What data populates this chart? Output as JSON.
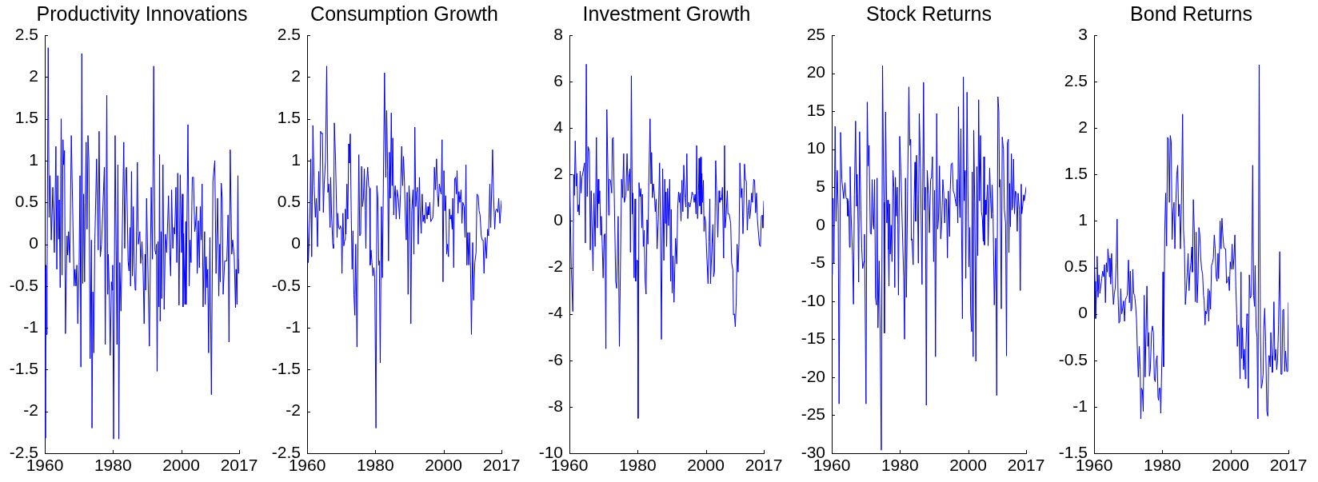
{
  "chart_data": [
    {
      "type": "line",
      "title": "Productivity Innovations",
      "color": "#0000ff",
      "xlim": [
        1960,
        2017
      ],
      "xticks": [
        1960,
        1980,
        2000,
        2017
      ],
      "ylim": [
        -2.5,
        2.5
      ],
      "yticks": [
        -2.5,
        -2,
        -1.5,
        -1,
        -0.5,
        0,
        0.5,
        1,
        1.5,
        2,
        2.5
      ],
      "x": [
        1960.0,
        1960.18,
        1960.36,
        1960.5,
        1960.68,
        1961.0,
        1961.27,
        1961.54,
        1961.9,
        1962.35,
        1962.81,
        1963.26,
        1963.53,
        1963.8,
        1964.07,
        1964.25,
        1964.52,
        1964.8,
        1965.07,
        1965.34,
        1965.52,
        1965.79,
        1966.06,
        1966.52,
        1966.7,
        1966.97,
        1967.33,
        1967.78,
        1968.6,
        1968.87,
        1969.14,
        1969.41,
        1969.68,
        1970.05,
        1970.32,
        1970.59,
        1970.86,
        1971.13,
        1971.4,
        1971.67,
        1971.86,
        1972.13,
        1972.4,
        1972.67,
        1972.94,
        1973.3,
        1973.67,
        1973.85,
        1974.12,
        1974.39,
        1974.66,
        1975.2,
        1975.66,
        1975.93,
        1976.29,
        1976.65,
        1977.47,
        1977.74,
        1978.19,
        1978.46,
        1978.64,
        1978.91,
        1979.19,
        1979.55,
        1979.82,
        1979.91,
        1980.18,
        1980.63,
        1981.18,
        1981.45,
        1981.72,
        1981.99,
        1982.35,
        1983.17,
        1983.44,
        1983.8,
        1983.98,
        1984.43,
        1984.71,
        1984.98,
        1985.16,
        1985.43,
        1985.7,
        1985.97,
        1986.24,
        1986.52,
        1986.7,
        1987.15,
        1987.42,
        1987.87,
        1988.14,
        1988.51,
        1988.78,
        1989.14,
        1989.41,
        1989.59,
        1989.86,
        1990.68,
        1991.22,
        1991.58,
        1991.95,
        1992.31,
        1992.58,
        1992.76,
        1992.94,
        1993.21,
        1993.48,
        1993.67,
        1993.85,
        1994.12,
        1994.3,
        1994.66,
        1995.02,
        1995.38,
        1995.75,
        1996.29,
        1996.65,
        1996.92,
        1997.19,
        1997.56,
        1997.83,
        1998.1,
        1998.46,
        1998.73,
        1999.0,
        1999.37,
        1999.73,
        2000.09,
        2000.36,
        2000.54,
        2000.72,
        2001.09,
        2001.36,
        2001.45,
        2001.99,
        2002.35,
        2002.62,
        2002.9,
        2003.26,
        2003.62,
        2003.98,
        2004.16,
        2004.52,
        2004.71,
        2005.07,
        2005.34,
        2005.61,
        2005.88,
        2006.15,
        2006.43,
        2006.88,
        2007.06,
        2007.33,
        2007.6,
        2007.78,
        2008.05,
        2008.42,
        2008.87,
        2009.32,
        2009.86,
        2010.23,
        2010.68,
        2011.04,
        2011.31,
        2011.49,
        2011.76,
        2012.04,
        2012.31,
        2012.76,
        2013.39,
        2013.76,
        2014.03,
        2014.39,
        2014.84,
        2015.11,
        2015.57,
        2015.93,
        2016.11,
        2016.38,
        2016.65,
        2016.83,
        2017.0
      ],
      "values": [
        -0.3,
        -2.32,
        -0.25,
        -1.08,
        -0.25,
        2.35,
        0.32,
        0.82,
        0.05,
        0.68,
        -0.1,
        1.17,
        -0.3,
        0.82,
        0.06,
        0.53,
        -0.52,
        1.5,
        -0.37,
        1.25,
        0.95,
        1.12,
        -1.07,
        0.1,
        -0.13,
        0.15,
        -0.22,
        1.3,
        -0.5,
        -0.3,
        -0.5,
        -0.25,
        -0.95,
        -0.3,
        0.82,
        -1.47,
        2.28,
        -0.47,
        0.6,
        -0.45,
        0.5,
        1.22,
        0.18,
        1.3,
        1.0,
        -1.37,
        0.05,
        -2.2,
        -0.57,
        -1.3,
        0.0,
        1.02,
        -0.07,
        1.35,
        -0.15,
        0.0,
        0.92,
        -1.2,
        1.78,
        -0.6,
        -0.12,
        -0.55,
        -1.33,
        -0.45,
        -0.55,
        -0.25,
        -2.33,
        1.3,
        -1.2,
        0.95,
        -2.33,
        -0.22,
        -0.8,
        1.22,
        -0.05,
        0.9,
        0.92,
        -0.2,
        -0.32,
        0.2,
        -0.5,
        0.87,
        -0.38,
        0.45,
        -0.28,
        -0.55,
        -0.5,
        0.98,
        0.0,
        0.15,
        -0.23,
        0.03,
        -0.2,
        -0.95,
        -0.12,
        -0.55,
        0.55,
        -1.22,
        0.68,
        -0.18,
        2.13,
        -0.07,
        -0.12,
        0.0,
        -1.52,
        0.03,
        -0.75,
        1.07,
        -0.92,
        0.15,
        -0.65,
        0.95,
        -0.78,
        0.12,
        -0.1,
        0.58,
        -0.1,
        -0.38,
        0.65,
        -0.05,
        0.2,
        0.12,
        0.68,
        -0.22,
        0.85,
        -0.73,
        0.83,
        -0.1,
        0.6,
        -0.75,
        0.13,
        -0.72,
        0.27,
        -0.72,
        1.43,
        -0.5,
        0.05,
        -0.22,
        0.8,
        0.8,
        0.15,
        0.2,
        0.45,
        -0.35,
        0.28,
        -0.28,
        0.45,
        0.05,
        0.72,
        -0.75,
        0.15,
        -0.72,
        -0.15,
        -0.52,
        -0.3,
        -1.3,
        0.08,
        -1.8,
        0.75,
        1.0,
        -0.35,
        0.55,
        -0.62,
        0.0,
        -0.45,
        0.73,
        0.55,
        -0.6,
        -0.2,
        -0.2,
        0.35,
        -1.17,
        1.13,
        -0.12,
        0.05,
        -0.15,
        -0.76,
        -0.3,
        -0.72,
        0.82,
        -0.35,
        -0.18
      ]
    },
    {
      "type": "line",
      "title": "Consumption Growth",
      "color": "#0000ff",
      "xlim": [
        1960,
        2017
      ],
      "xticks": [
        1960,
        1980,
        2000,
        2017
      ],
      "ylim": [
        -2.5,
        2.5
      ],
      "yticks": [
        -2.5,
        -2,
        -1.5,
        -1,
        -0.5,
        0,
        0.5,
        1,
        1.5,
        2,
        2.5
      ],
      "x": [
        1960.0,
        1960.36,
        1960.81,
        1961.08,
        1961.35,
        1961.71,
        1962.06,
        1962.42,
        1962.69,
        1963.05,
        1963.41,
        1963.68,
        1963.95,
        1964.22,
        1964.49,
        1964.76,
        1965.03,
        1965.39,
        1965.75,
        1966.1,
        1966.37,
        1966.73,
        1966.91,
        1967.18,
        1967.54,
        1967.72,
        1967.99,
        1968.35,
        1968.8,
        1968.98,
        1969.25,
        1969.52,
        1969.78,
        1970.05,
        1970.23,
        1970.5,
        1970.77,
        1971.04,
        1971.22,
        1971.4,
        1971.67,
        1971.94,
        1972.21,
        1972.39,
        1972.66,
        1972.93,
        1973.2,
        1973.46,
        1973.73,
        1974.0,
        1974.27,
        1974.63,
        1975.17,
        1975.44,
        1975.71,
        1975.98,
        1976.25,
        1976.52,
        1976.79,
        1977.06,
        1977.24,
        1977.5,
        1977.77,
        1978.04,
        1978.31,
        1978.49,
        1978.76,
        1979.03,
        1979.3,
        1979.57,
        1979.84,
        1980.2,
        1980.47,
        1980.74,
        1981.01,
        1981.18,
        1981.45,
        1981.81,
        1982.08,
        1982.71,
        1983.07,
        1983.34,
        1983.61,
        1983.88,
        1984.15,
        1984.42,
        1984.69,
        1984.95,
        1985.13,
        1985.4,
        1985.58,
        1985.85,
        1986.12,
        1986.39,
        1986.75,
        1987.11,
        1987.38,
        1987.74,
        1988.01,
        1988.28,
        1988.55,
        1988.82,
        1989.08,
        1989.35,
        1989.62,
        1989.89,
        1990.16,
        1990.43,
        1990.7,
        1991.06,
        1991.33,
        1991.6,
        1991.87,
        1992.14,
        1992.32,
        1992.59,
        1992.94,
        1993.21,
        1993.48,
        1993.75,
        1994.02,
        1994.29,
        1994.56,
        1994.83,
        1995.19,
        1995.46,
        1995.64,
        1996.0,
        1996.27,
        1996.62,
        1996.89,
        1997.16,
        1997.34,
        1997.61,
        1997.97,
        1998.24,
        1998.51,
        1998.78,
        1999.05,
        1999.32,
        1999.59,
        1999.86,
        2000.13,
        2000.39,
        2000.66,
        2000.93,
        2001.2,
        2001.47,
        2001.74,
        2002.01,
        2002.28,
        2002.55,
        2002.73,
        2003.0,
        2003.27,
        2003.54,
        2003.81,
        2003.99,
        2004.25,
        2004.52,
        2004.79,
        2005.15,
        2005.42,
        2005.69,
        2006.05,
        2006.32,
        2006.59,
        2006.86,
        2007.13,
        2007.4,
        2007.67,
        2007.94,
        2008.2,
        2008.56,
        2008.83,
        2009.19,
        2009.55,
        2009.82,
        2010.18,
        2010.45,
        2010.72,
        2011.08,
        2011.35,
        2011.62,
        2011.89,
        2012.24,
        2012.6,
        2012.96,
        2013.23,
        2013.59,
        2013.86,
        2014.4,
        2014.67,
        2015.03,
        2015.3,
        2015.57,
        2015.93,
        2016.2,
        2016.55,
        2017.0
      ],
      "values": [
        0.85,
        -0.22,
        0.3,
        1.02,
        -0.15,
        1.42,
        0.7,
        0.32,
        0.55,
        -0.03,
        0.87,
        0.4,
        1.35,
        1.32,
        1.33,
        0.38,
        0.72,
        1.0,
        2.13,
        0.62,
        0.72,
        0.2,
        0.8,
        0.35,
        0.0,
        -0.05,
        1.45,
        1.0,
        0.08,
        0.37,
        0.2,
        0.18,
        0.22,
        0.18,
        -0.35,
        0.37,
        -0.02,
        0.05,
        0.42,
        0.12,
        0.72,
        0.3,
        1.2,
        0.97,
        1.32,
        0.4,
        -0.3,
        0.16,
        -0.6,
        -0.85,
        0.0,
        -1.23,
        1.07,
        0.1,
        0.12,
        0.93,
        0.45,
        0.55,
        0.9,
        0.4,
        -0.05,
        0.75,
        0.92,
        0.7,
        0.67,
        -0.25,
        -0.07,
        -0.22,
        -0.38,
        -0.28,
        -0.4,
        -2.2,
        0.7,
        0.55,
        -0.25,
        -0.2,
        -1.42,
        0.45,
        -0.4,
        2.05,
        0.8,
        1.6,
        0.88,
        -0.2,
        1.1,
        0.55,
        1.57,
        0.7,
        1.27,
        0.35,
        0.55,
        0.7,
        0.3,
        0.65,
        0.55,
        0.3,
        0.6,
        1.17,
        0.7,
        1.05,
        0.75,
        0.3,
        0.05,
        0.62,
        -0.6,
        0.7,
        0.5,
        -0.95,
        0.4,
        0.65,
        -0.12,
        1.4,
        0.45,
        0.63,
        0.68,
        0.0,
        0.8,
        0.32,
        0.13,
        0.6,
        0.27,
        0.35,
        0.25,
        0.5,
        0.3,
        0.45,
        0.35,
        0.5,
        0.27,
        0.3,
        0.32,
        0.55,
        0.92,
        0.65,
        1.02,
        0.6,
        0.45,
        0.72,
        0.65,
        0.6,
        1.25,
        -0.45,
        0.88,
        0.4,
        0.58,
        -0.12,
        0.0,
        -0.15,
        0.42,
        0.3,
        0.35,
        0.18,
        0.55,
        -0.28,
        0.78,
        0.8,
        0.6,
        0.88,
        0.37,
        0.63,
        0.5,
        0.65,
        0.25,
        0.5,
        0.45,
        0.08,
        0.95,
        -0.25,
        0.14,
        -0.25,
        0.14,
        -0.3,
        -1.08,
        0.02,
        -0.67,
        -0.22,
        -0.1,
        0.6,
        0.58,
        0.4,
        0.35,
        0.1,
        0.05,
        0.05,
        -0.35,
        0.08,
        -0.17,
        0.18,
        0.1,
        0.72,
        0.2,
        1.13,
        0.6,
        0.18,
        0.4,
        0.42,
        0.38,
        0.55,
        0.25,
        0.52
      ]
    },
    {
      "type": "line",
      "title": "Investment Growth",
      "color": "#0000ff",
      "xlim": [
        1960,
        2017
      ],
      "xticks": [
        1960,
        1980,
        2000,
        2017
      ],
      "ylim": [
        -10,
        8
      ],
      "yticks": [
        -10,
        -8,
        -6,
        -4,
        -2,
        0,
        2,
        4,
        6,
        8
      ],
      "x": [
        1960.0,
        1960.54,
        1960.99,
        1961.26,
        1961.44,
        1961.71,
        1961.98,
        1962.25,
        1962.43,
        1962.61,
        1962.88,
        1963.15,
        1963.42,
        1963.69,
        1964.05,
        1964.41,
        1964.68,
        1964.95,
        1965.22,
        1965.49,
        1965.85,
        1966.12,
        1966.39,
        1966.92,
        1967.19,
        1967.55,
        1967.91,
        1968.18,
        1968.45,
        1968.63,
        1968.9,
        1969.17,
        1969.35,
        1969.62,
        1969.89,
        1970.16,
        1970.43,
        1970.7,
        1970.97,
        1971.51,
        1971.69,
        1972.05,
        1972.41,
        1972.59,
        1972.86,
        1973.22,
        1973.58,
        1973.85,
        1974.3,
        1974.66,
        1975.29,
        1975.56,
        1975.92,
        1976.1,
        1976.55,
        1976.91,
        1977.18,
        1977.45,
        1977.72,
        1977.9,
        1978.17,
        1978.44,
        1978.62,
        1978.97,
        1979.24,
        1979.42,
        1979.69,
        1979.96,
        1980.14,
        1980.41,
        1980.68,
        1980.95,
        1981.22,
        1981.4,
        1981.67,
        1981.94,
        1982.21,
        1982.48,
        1982.75,
        1983.02,
        1983.29,
        1983.65,
        1983.92,
        1984.1,
        1984.37,
        1984.64,
        1984.91,
        1985.18,
        1985.45,
        1985.72,
        1986.08,
        1986.44,
        1986.71,
        1986.98,
        1987.34,
        1987.7,
        1987.97,
        1988.15,
        1988.33,
        1988.51,
        1988.78,
        1989.05,
        1989.41,
        1989.68,
        1989.86,
        1990.13,
        1990.4,
        1990.67,
        1991.12,
        1991.47,
        1991.74,
        1992.01,
        1992.28,
        1992.46,
        1992.73,
        1993.0,
        1993.27,
        1993.54,
        1993.9,
        1994.17,
        1994.44,
        1994.71,
        1994.98,
        1995.34,
        1995.61,
        1995.97,
        1996.33,
        1996.6,
        1996.87,
        1997.14,
        1997.32,
        1997.59,
        1997.86,
        1998.04,
        1998.22,
        1998.49,
        1998.67,
        1998.85,
        1999.03,
        1999.3,
        1999.48,
        1999.66,
        1999.93,
        2000.29,
        2000.65,
        2000.92,
        2001.19,
        2001.37,
        2001.82,
        2002.09,
        2002.27,
        2002.54,
        2002.9,
        2003.17,
        2003.53,
        2003.88,
        2004.06,
        2004.33,
        2004.6,
        2004.87,
        2005.23,
        2005.5,
        2005.68,
        2005.95,
        2006.31,
        2006.49,
        2006.85,
        2007.3,
        2007.57,
        2007.93,
        2008.11,
        2008.38,
        2008.65,
        2008.92,
        2009.19,
        2009.46,
        2009.73,
        2010.0,
        2010.36,
        2010.63,
        2010.9,
        2011.08,
        2011.35,
        2011.62,
        2011.89,
        2012.16,
        2012.43,
        2012.71,
        2012.89,
        2013.16,
        2013.43,
        2013.69,
        2014.05,
        2014.32,
        2014.59,
        2014.86,
        2015.13,
        2015.49,
        2015.76,
        2016.03,
        2016.29,
        2016.56,
        2016.74,
        2017.0
      ],
      "values": [
        2.5,
        -2.0,
        -3.9,
        2.0,
        1.1,
        3.45,
        1.5,
        2.05,
        0.4,
        0.7,
        0.25,
        2.15,
        1.2,
        1.9,
        2.15,
        2.5,
        -0.95,
        6.75,
        1.05,
        3.2,
        3.0,
        -1.25,
        1.3,
        -2.15,
        1.2,
        -1.1,
        3.6,
        -0.3,
        1.8,
        0.75,
        1.3,
        -0.6,
        0.2,
        -1.0,
        -2.45,
        -0.6,
        -0.55,
        -5.5,
        4.8,
        0.25,
        1.8,
        1.75,
        1.2,
        3.55,
        3.6,
        0.5,
        -2.6,
        -2.9,
        0.2,
        -5.4,
        1.8,
        1.0,
        2.9,
        0.8,
        1.1,
        2.9,
        1.3,
        1.9,
        2.25,
        -1.35,
        6.25,
        0.3,
        1.2,
        -2.45,
        0.95,
        -2.6,
        -1.7,
        -1.7,
        -8.5,
        1.65,
        1.05,
        1.4,
        -0.3,
        1.15,
        -1.1,
        -0.4,
        -2.6,
        -3.15,
        0.05,
        -1.0,
        1.7,
        4.4,
        1.6,
        2.95,
        1.0,
        1.6,
        1.2,
        0.4,
        0.95,
        -1.2,
        0.1,
        2.5,
        -0.2,
        -5.1,
        2.25,
        -1.7,
        1.8,
        -0.1,
        1.25,
        -1.1,
        1.4,
        -0.2,
        1.8,
        -2.6,
        0.5,
        -3.1,
        -1.5,
        -3.5,
        -0.75,
        -1.85,
        0.5,
        1.25,
        0.8,
        1.2,
        0.0,
        1.75,
        0.4,
        2.4,
        1.0,
        0.6,
        2.9,
        0.1,
        0.8,
        0.6,
        0.8,
        1.25,
        1.1,
        0.8,
        1.15,
        0.3,
        3.25,
        0.1,
        1.3,
        2.7,
        0.65,
        2.75,
        0.3,
        2.05,
        0.8,
        1.75,
        -0.45,
        0.2,
        0.0,
        -1.5,
        -2.7,
        -0.9,
        0.95,
        -2.7,
        -1.0,
        -0.15,
        -2.4,
        -2.2,
        2.6,
        1.3,
        -0.7,
        1.3,
        0.8,
        1.0,
        0.9,
        1.45,
        -1.6,
        3.25,
        -0.3,
        0.2,
        1.3,
        0.3,
        0.3,
        -0.1,
        -1.8,
        -2.1,
        -4.05,
        -4.0,
        -4.55,
        -3.5,
        -1.0,
        -2.2,
        -1.0,
        2.5,
        1.0,
        1.4,
        -0.55,
        0.2,
        2.45,
        1.8,
        1.7,
        -0.4,
        0.45,
        0.9,
        0.1,
        0.5,
        1.2,
        0.8,
        1.8,
        1.75,
        0.35,
        1.2,
        0.1,
        -0.6,
        -1.05,
        -1.1,
        0.2,
        0.25,
        -0.3,
        0.85
      ]
    },
    {
      "type": "line",
      "title": "Stock Returns",
      "color": "#0000ff",
      "xlim": [
        1960,
        2017
      ],
      "xticks": [
        1960,
        1980,
        2000,
        2017
      ],
      "ylim": [
        -30,
        25
      ],
      "yticks": [
        -30,
        -25,
        -20,
        -15,
        -10,
        -5,
        0,
        5,
        10,
        15,
        20,
        25
      ],
      "x": [
        1960.0,
        1960.18,
        1960.45,
        1960.63,
        1960.99,
        1961.26,
        1961.62,
        1961.89,
        1962.15,
        1962.6,
        1962.96,
        1963.5,
        1963.86,
        1964.22,
        1964.49,
        1964.67,
        1964.85,
        1965.03,
        1965.21,
        1965.39,
        1965.66,
        1966.1,
        1966.37,
        1966.64,
        1967.0,
        1967.27,
        1967.45,
        1967.72,
        1967.9,
        1968.17,
        1968.53,
        1968.8,
        1969.07,
        1969.43,
        1969.61,
        1970.05,
        1970.41,
        1970.68,
        1970.95,
        1971.31,
        1971.58,
        1971.85,
        1972.12,
        1972.3,
        1972.57,
        1972.84,
        1973.11,
        1973.29,
        1973.55,
        1973.91,
        1974.18,
        1974.54,
        1974.9,
        1975.26,
        1975.44,
        1975.8,
        1976.16,
        1976.43,
        1976.61,
        1976.79,
        1976.97,
        1977.15,
        1977.41,
        1977.68,
        1977.95,
        1978.22,
        1978.49,
        1978.67,
        1978.94,
        1979.21,
        1979.39,
        1979.57,
        1979.93,
        1980.29,
        1980.65,
        1981.1,
        1981.36,
        1981.63,
        1981.9,
        1982.26,
        1982.62,
        1982.89,
        1983.16,
        1983.34,
        1983.52,
        1983.88,
        1984.15,
        1984.42,
        1984.6,
        1984.87,
        1985.13,
        1985.4,
        1985.67,
        1986.03,
        1986.48,
        1986.93,
        1987.2,
        1987.47,
        1987.74,
        1988.01,
        1988.37,
        1988.64,
        1988.99,
        1989.26,
        1989.53,
        1989.89,
        1990.16,
        1990.43,
        1990.79,
        1991.06,
        1991.33,
        1991.6,
        1991.96,
        1992.23,
        1992.59,
        1992.85,
        1993.12,
        1993.39,
        1993.66,
        1993.93,
        1994.2,
        1994.56,
        1994.74,
        1995.01,
        1995.37,
        1995.64,
        1995.91,
        1996.18,
        1996.54,
        1996.71,
        1996.98,
        1997.16,
        1997.43,
        1997.61,
        1997.88,
        1998.06,
        1998.33,
        1998.6,
        1998.87,
        1999.14,
        1999.32,
        1999.68,
        1999.95,
        2000.22,
        2000.48,
        2000.75,
        2001.02,
        2001.2,
        2001.47,
        2001.65,
        2001.92,
        2002.28,
        2002.55,
        2002.82,
        2003.09,
        2003.36,
        2003.63,
        2003.9,
        2004.17,
        2004.43,
        2004.61,
        2004.79,
        2005.06,
        2005.24,
        2005.42,
        2005.69,
        2005.87,
        2006.32,
        2006.59,
        2006.86,
        2007.04,
        2007.31,
        2007.67,
        2007.85,
        2008.12,
        2008.38,
        2008.74,
        2009.01,
        2009.19,
        2009.37,
        2009.73,
        2010.0,
        2010.36,
        2010.63,
        2010.99,
        2011.26,
        2011.53,
        2011.8,
        2011.97,
        2012.15,
        2012.42,
        2012.69,
        2012.87,
        2013.05,
        2013.32,
        2013.59,
        2013.86,
        2014.13,
        2014.4,
        2014.67,
        2015.03,
        2015.3,
        2015.57,
        2015.75,
        2016.01,
        2016.28,
        2016.46,
        2016.73,
        2017.0
      ],
      "values": [
        -6.5,
        3.5,
        3.5,
        -5.0,
        13.0,
        0.5,
        7.2,
        2.0,
        -23.5,
        12.2,
        6.0,
        3.5,
        5.6,
        3.5,
        3.5,
        1.2,
        3.2,
        1.5,
        -2.9,
        7.7,
        1.5,
        -4.0,
        -10.4,
        4.0,
        13.7,
        2.5,
        6.7,
        0.0,
        -7.5,
        12.3,
        2.0,
        -3.0,
        -5.7,
        -4.8,
        -1.2,
        -23.5,
        16.2,
        7.8,
        10.5,
        -1.0,
        -1.2,
        6.0,
        0.2,
        -0.5,
        6.0,
        -9.5,
        -10.5,
        6.2,
        -13.5,
        -4.7,
        -13.5,
        -29.6,
        21.0,
        3.0,
        -14.2,
        14.9,
        0.3,
        3.3,
        -3.2,
        -8.0,
        2.8,
        -3.8,
        0.0,
        -4.8,
        7.2,
        5.0,
        -8.2,
        6.3,
        1.2,
        5.0,
        0.0,
        -9.2,
        11.7,
        7.0,
        0.5,
        -6.8,
        -15.0,
        6.2,
        -9.5,
        5.0,
        18.2,
        10.5,
        11.3,
        -2.0,
        -1.8,
        -5.2,
        3.0,
        8.3,
        0.5,
        9.2,
        4.0,
        -5.0,
        14.7,
        7.5,
        -7.8,
        18.8,
        2.0,
        5.0,
        -23.7,
        7.2,
        4.0,
        -1.0,
        6.0,
        6.3,
        9.0,
        -4.8,
        4.6,
        -17.3,
        14.7,
        -0.5,
        1.0,
        7.8,
        -1.8,
        0.0,
        6.0,
        4.2,
        0.3,
        3.5,
        3.4,
        -4.3,
        4.5,
        -1.5,
        4.5,
        8.0,
        8.2,
        4.5,
        4.2,
        3.5,
        2.5,
        6.0,
        0.3,
        15.6,
        3.5,
        1.0,
        12.7,
        0.5,
        -12.3,
        19.5,
        3.2,
        7.2,
        -7.0,
        17.5,
        4.5,
        -5.5,
        -0.3,
        -11.5,
        -14.0,
        7.0,
        -17.3,
        12.5,
        3.2,
        -17.9,
        7.7,
        -4.0,
        16.5,
        3.2,
        11.8,
        1.8,
        1.0,
        -2.1,
        9.0,
        -2.6,
        3.3,
        1.4,
        3.0,
        5.3,
        -2.7,
        7.5,
        3.5,
        0.9,
        5.3,
        1.5,
        -10.5,
        -10.5,
        -1.7,
        -22.4,
        16.9,
        15.0,
        5.0,
        6.0,
        -11.0,
        11.6,
        10.0,
        2.0,
        0.3,
        -17.2,
        10.8,
        11.3,
        -3.6,
        5.5,
        -0.2,
        9.4,
        2.0,
        2.4,
        8.7,
        1.5,
        4.5,
        4.2,
        -0.8,
        4.2,
        2.0,
        -8.6,
        5.4,
        1.5,
        2.5,
        4.0,
        3.2,
        4.0,
        5.0
      ]
    },
    {
      "type": "line",
      "title": "Bond Returns",
      "color": "#0000ff",
      "xlim": [
        1960,
        2017
      ],
      "xticks": [
        1960,
        1980,
        2000,
        2017
      ],
      "ylim": [
        -1.5,
        3
      ],
      "yticks": [
        -1.5,
        -1,
        -0.5,
        0,
        0.5,
        1,
        1.5,
        2,
        2.5,
        3
      ],
      "x": [
        1960.0,
        1960.27,
        1960.45,
        1960.72,
        1960.9,
        1961.17,
        1961.44,
        1961.71,
        1961.98,
        1962.25,
        1962.52,
        1962.8,
        1963.07,
        1963.34,
        1963.61,
        1963.88,
        1964.06,
        1964.33,
        1964.51,
        1964.69,
        1964.87,
        1965.14,
        1965.41,
        1965.68,
        1965.95,
        1966.22,
        1966.49,
        1966.76,
        1967.03,
        1967.3,
        1967.57,
        1967.84,
        1968.12,
        1968.39,
        1968.66,
        1968.93,
        1969.2,
        1969.47,
        1969.74,
        1970.1,
        1970.37,
        1970.64,
        1970.82,
        1971.09,
        1971.36,
        1971.63,
        1971.9,
        1972.17,
        1972.44,
        1972.71,
        1972.98,
        1973.26,
        1973.53,
        1973.71,
        1973.89,
        1974.16,
        1974.43,
        1974.7,
        1974.97,
        1975.24,
        1975.51,
        1975.78,
        1976.05,
        1976.23,
        1976.5,
        1976.86,
        1977.13,
        1977.4,
        1977.67,
        1977.94,
        1978.21,
        1978.49,
        1978.76,
        1978.94,
        1979.12,
        1979.39,
        1979.57,
        1980.02,
        1980.2,
        1980.38,
        1980.74,
        1981.01,
        1981.28,
        1981.55,
        1981.82,
        1982.09,
        1982.36,
        1982.63,
        1982.9,
        1983.17,
        1983.44,
        1983.71,
        1983.99,
        1984.26,
        1984.53,
        1984.8,
        1985.07,
        1985.34,
        1985.61,
        1985.97,
        1986.24,
        1986.51,
        1986.78,
        1987.05,
        1987.32,
        1987.59,
        1987.86,
        1988.13,
        1988.4,
        1988.67,
        1988.85,
        1989.12,
        1989.4,
        1989.67,
        1989.94,
        1990.21,
        1990.48,
        1990.75,
        1991.02,
        1991.29,
        1991.56,
        1991.83,
        1992.1,
        1992.28,
        1992.55,
        1992.73,
        1993.0,
        1993.18,
        1993.45,
        1993.63,
        1993.9,
        1994.17,
        1994.45,
        1994.72,
        1994.99,
        1995.26,
        1995.53,
        1995.8,
        1996.07,
        1996.34,
        1996.52,
        1996.79,
        1996.97,
        1997.24,
        1997.51,
        1997.78,
        1998.05,
        1998.32,
        1998.59,
        1998.86,
        1999.13,
        1999.4,
        1999.68,
        1999.95,
        2000.22,
        2000.49,
        2000.76,
        2001.03,
        2001.3,
        2001.57,
        2001.84,
        2002.02,
        2002.29,
        2002.56,
        2002.83,
        2003.1,
        2003.28,
        2003.55,
        2003.82,
        2004.09,
        2004.36,
        2004.54,
        2004.82,
        2005.0,
        2005.27,
        2005.54,
        2005.81,
        2006.17,
        2006.53,
        2006.8,
        2007.07,
        2007.25,
        2007.52,
        2007.79,
        2008.06,
        2008.42,
        2008.78,
        2009.05,
        2009.32,
        2009.59,
        2009.77,
        2010.05,
        2010.32,
        2010.68,
        2010.95,
        2011.22,
        2011.4,
        2011.67,
        2011.85,
        2012.12,
        2012.3,
        2012.48,
        2012.75,
        2013.02,
        2013.29,
        2013.56,
        2013.83,
        2014.1,
        2014.46,
        2014.82,
        2015.09,
        2015.36,
        2015.63,
        2015.9,
        2016.17,
        2016.53,
        2016.8,
        2017.0
      ],
      "values": [
        0.68,
        0.35,
        -0.05,
        0.25,
        0.62,
        0.18,
        0.42,
        0.22,
        0.3,
        0.38,
        0.46,
        0.4,
        0.53,
        0.12,
        0.55,
        0.45,
        0.7,
        0.6,
        0.4,
        0.6,
        0.32,
        0.65,
        0.32,
        0.1,
        0.22,
        0.28,
        0.55,
        1.02,
        0.2,
        -0.1,
        -0.08,
        0.27,
        0.0,
        0.06,
        0.14,
        -0.08,
        0.15,
        0.18,
        0.2,
        0.58,
        0.12,
        0.46,
        0.03,
        0.06,
        0.48,
        0.22,
        0.2,
        0.1,
        -0.05,
        -0.4,
        -0.68,
        -0.35,
        -0.6,
        -1.13,
        -0.8,
        -0.82,
        -1.05,
        0.2,
        -0.68,
        -0.2,
        0.3,
        -0.35,
        -0.2,
        -0.67,
        -0.6,
        -0.2,
        -0.13,
        -0.2,
        -0.7,
        -0.73,
        -0.5,
        -0.45,
        -0.9,
        -0.93,
        -0.8,
        -0.8,
        -1.07,
        -0.25,
        0.45,
        -0.57,
        0.9,
        1.3,
        0.73,
        1.9,
        1.88,
        1.2,
        1.92,
        1.85,
        0.8,
        1.1,
        1.2,
        0.7,
        1.2,
        1.5,
        1.6,
        1.05,
        1.18,
        0.7,
        1.17,
        2.15,
        0.9,
        0.7,
        0.1,
        0.25,
        0.45,
        0.65,
        0.25,
        0.45,
        0.55,
        0.72,
        0.45,
        1.23,
        0.9,
        0.13,
        0.88,
        0.12,
        0.35,
        0.93,
        0.85,
        0.6,
        0.48,
        0.43,
        0.2,
        0.15,
        -0.12,
        0.03,
        0.0,
        0.05,
        0.27,
        -0.08,
        0.25,
        0.05,
        0.52,
        0.55,
        0.6,
        0.85,
        0.7,
        0.4,
        0.35,
        0.65,
        0.38,
        0.7,
        1.0,
        0.7,
        1.03,
        0.85,
        0.72,
        0.7,
        0.7,
        0.33,
        0.35,
        0.4,
        0.25,
        0.56,
        0.48,
        0.75,
        0.48,
        0.6,
        0.85,
        0.3,
        0.0,
        -0.35,
        -0.12,
        -0.2,
        -0.7,
        0.45,
        -0.48,
        -0.15,
        -0.6,
        -0.38,
        -0.7,
        -0.38,
        0.0,
        -0.02,
        -0.8,
        0.42,
        0.17,
        0.2,
        1.6,
        0.2,
        0.08,
        0.52,
        -0.15,
        -0.25,
        -1.13,
        2.68,
        -0.2,
        -0.8,
        -0.75,
        -0.65,
        -0.15,
        0.06,
        -0.3,
        -1.05,
        -1.1,
        -0.45,
        -0.45,
        -0.57,
        -0.2,
        -0.45,
        -0.63,
        -0.45,
        0.13,
        -0.5,
        -0.38,
        -0.6,
        -0.5,
        -0.12,
        0.67,
        -0.65,
        -0.65,
        0.04,
        0.05,
        -0.62,
        -0.4,
        -0.62,
        -0.62,
        0.12
      ]
    }
  ]
}
